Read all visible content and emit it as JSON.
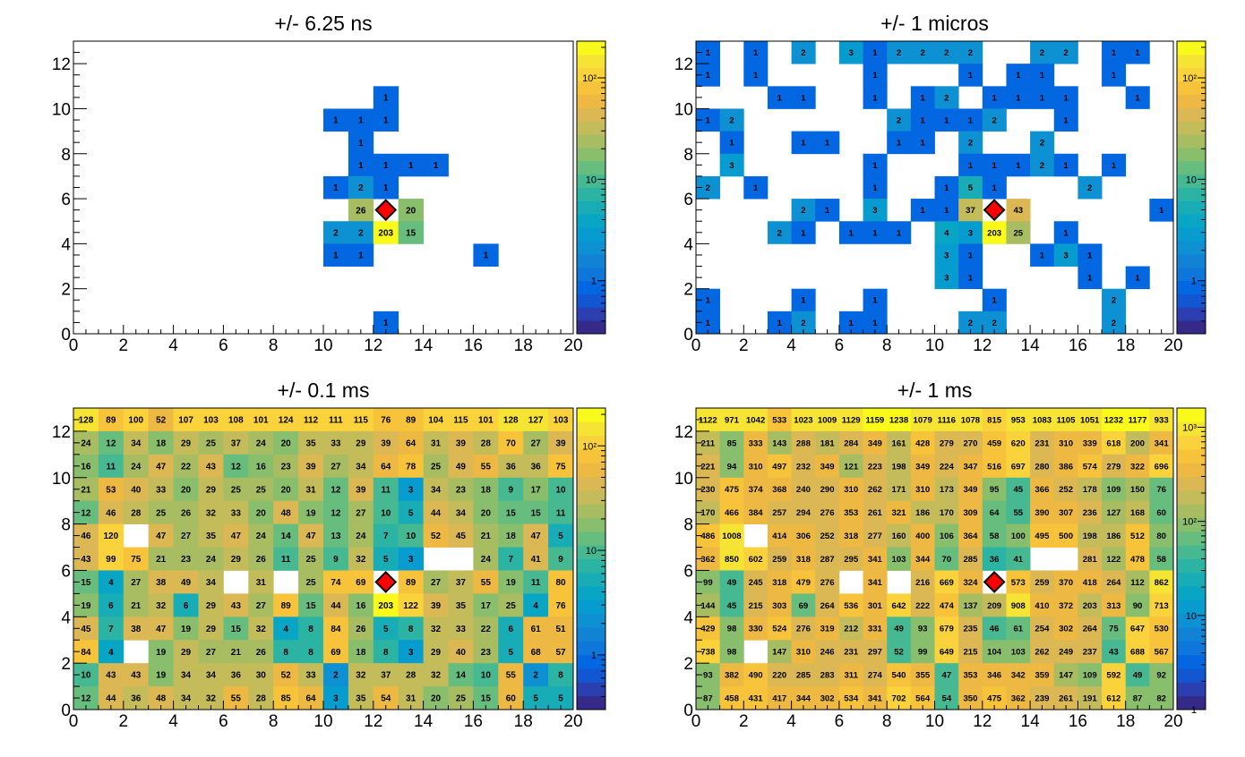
{
  "colors": {
    "palette": [
      "#352a87",
      "#2b3fb0",
      "#1356d2",
      "#0367e1",
      "#0f77dc",
      "#1283d4",
      "#0d91d2",
      "#079ccf",
      "#08a5c5",
      "#17acb6",
      "#2bb4a4",
      "#47b992",
      "#67bd7e",
      "#89be6c",
      "#a8bd61",
      "#c4bb5a",
      "#dbb853",
      "#edb943",
      "#f7c33a",
      "#f9d23c",
      "#f5e433",
      "#f9f91b"
    ],
    "marker_fill": "#ff0000",
    "marker_stroke": "#000000"
  },
  "marker": {
    "x": 12.5,
    "y": 5.5,
    "shape": "diamond"
  },
  "chart_data": [
    {
      "type": "heatmap",
      "title": "+/- 6.25 ns",
      "xlim": [
        0,
        20
      ],
      "ylim": [
        0,
        13
      ],
      "xticks": [
        0,
        2,
        4,
        6,
        8,
        10,
        12,
        14,
        16,
        18,
        20
      ],
      "yticks": [
        0,
        2,
        4,
        6,
        8,
        10,
        12
      ],
      "zscale": "log",
      "zlim": [
        0.3,
        230
      ],
      "colorbar_ticks": [
        {
          "value": 1,
          "label": "1"
        },
        {
          "value": 10,
          "label": "10"
        },
        {
          "value": 100,
          "label": "10²"
        }
      ],
      "cells": [
        [
          12,
          10,
          1
        ],
        [
          10,
          9,
          1
        ],
        [
          11,
          9,
          1
        ],
        [
          12,
          9,
          1
        ],
        [
          11,
          8,
          1
        ],
        [
          11,
          7,
          1
        ],
        [
          12,
          7,
          1
        ],
        [
          13,
          7,
          1
        ],
        [
          14,
          7,
          1
        ],
        [
          10,
          6,
          1
        ],
        [
          11,
          6,
          2
        ],
        [
          12,
          6,
          1
        ],
        [
          11,
          5,
          26
        ],
        [
          13,
          5,
          20
        ],
        [
          10,
          4,
          2
        ],
        [
          11,
          4,
          2
        ],
        [
          12,
          4,
          203
        ],
        [
          13,
          4,
          15
        ],
        [
          10,
          3,
          1
        ],
        [
          11,
          3,
          1
        ],
        [
          16,
          3,
          1
        ],
        [
          12,
          0,
          1
        ]
      ]
    },
    {
      "type": "heatmap",
      "title": "+/- 1 micros",
      "xlim": [
        0,
        20
      ],
      "ylim": [
        0,
        13
      ],
      "xticks": [
        0,
        2,
        4,
        6,
        8,
        10,
        12,
        14,
        16,
        18,
        20
      ],
      "yticks": [
        0,
        2,
        4,
        6,
        8,
        10,
        12
      ],
      "zscale": "log",
      "zlim": [
        0.3,
        230
      ],
      "colorbar_ticks": [
        {
          "value": 1,
          "label": "1"
        },
        {
          "value": 10,
          "label": "10"
        },
        {
          "value": 100,
          "label": "10²"
        }
      ],
      "cells": [
        [
          0,
          12,
          1
        ],
        [
          2,
          12,
          1
        ],
        [
          4,
          12,
          2
        ],
        [
          6,
          12,
          3
        ],
        [
          7,
          12,
          1
        ],
        [
          8,
          12,
          2
        ],
        [
          9,
          12,
          2
        ],
        [
          10,
          12,
          2
        ],
        [
          11,
          12,
          2
        ],
        [
          14,
          12,
          2
        ],
        [
          15,
          12,
          2
        ],
        [
          17,
          12,
          1
        ],
        [
          18,
          12,
          1
        ],
        [
          0,
          11,
          1
        ],
        [
          2,
          11,
          1
        ],
        [
          7,
          11,
          1
        ],
        [
          11,
          11,
          1
        ],
        [
          13,
          11,
          1
        ],
        [
          14,
          11,
          1
        ],
        [
          17,
          11,
          1
        ],
        [
          3,
          10,
          1
        ],
        [
          4,
          10,
          1
        ],
        [
          7,
          10,
          1
        ],
        [
          9,
          10,
          1
        ],
        [
          10,
          10,
          2
        ],
        [
          12,
          10,
          1
        ],
        [
          13,
          10,
          1
        ],
        [
          14,
          10,
          1
        ],
        [
          15,
          10,
          1
        ],
        [
          18,
          10,
          1
        ],
        [
          0,
          9,
          1
        ],
        [
          1,
          9,
          2
        ],
        [
          8,
          9,
          2
        ],
        [
          9,
          9,
          1
        ],
        [
          10,
          9,
          1
        ],
        [
          11,
          9,
          1
        ],
        [
          12,
          9,
          2
        ],
        [
          15,
          9,
          1
        ],
        [
          1,
          8,
          1
        ],
        [
          4,
          8,
          1
        ],
        [
          5,
          8,
          1
        ],
        [
          8,
          8,
          1
        ],
        [
          9,
          8,
          1
        ],
        [
          11,
          8,
          2
        ],
        [
          14,
          8,
          2
        ],
        [
          1,
          7,
          3
        ],
        [
          7,
          7,
          1
        ],
        [
          11,
          7,
          1
        ],
        [
          12,
          7,
          1
        ],
        [
          13,
          7,
          1
        ],
        [
          14,
          7,
          2
        ],
        [
          15,
          7,
          1
        ],
        [
          17,
          7,
          1
        ],
        [
          0,
          6,
          2
        ],
        [
          2,
          6,
          1
        ],
        [
          7,
          6,
          1
        ],
        [
          10,
          6,
          1
        ],
        [
          11,
          6,
          5
        ],
        [
          12,
          6,
          1
        ],
        [
          16,
          6,
          2
        ],
        [
          4,
          5,
          2
        ],
        [
          5,
          5,
          1
        ],
        [
          7,
          5,
          3
        ],
        [
          9,
          5,
          1
        ],
        [
          10,
          5,
          1
        ],
        [
          11,
          5,
          37
        ],
        [
          13,
          5,
          43
        ],
        [
          19,
          5,
          1
        ],
        [
          3,
          4,
          2
        ],
        [
          4,
          4,
          1
        ],
        [
          6,
          4,
          1
        ],
        [
          7,
          4,
          1
        ],
        [
          8,
          4,
          1
        ],
        [
          10,
          4,
          4
        ],
        [
          11,
          4,
          3
        ],
        [
          12,
          4,
          203
        ],
        [
          13,
          4,
          25
        ],
        [
          15,
          4,
          1
        ],
        [
          10,
          3,
          3
        ],
        [
          11,
          3,
          1
        ],
        [
          14,
          3,
          1
        ],
        [
          15,
          3,
          3
        ],
        [
          16,
          3,
          1
        ],
        [
          10,
          2,
          3
        ],
        [
          11,
          2,
          1
        ],
        [
          16,
          2,
          1
        ],
        [
          18,
          2,
          1
        ],
        [
          0,
          1,
          1
        ],
        [
          4,
          1,
          1
        ],
        [
          7,
          1,
          1
        ],
        [
          12,
          1,
          1
        ],
        [
          17,
          1,
          2
        ],
        [
          0,
          0,
          1
        ],
        [
          3,
          0,
          1
        ],
        [
          4,
          0,
          2
        ],
        [
          6,
          0,
          1
        ],
        [
          7,
          0,
          1
        ],
        [
          11,
          0,
          2
        ],
        [
          12,
          0,
          2
        ],
        [
          17,
          0,
          2
        ]
      ]
    },
    {
      "type": "heatmap",
      "title": "+/- 0.1 ms",
      "xlim": [
        0,
        20
      ],
      "ylim": [
        0,
        13
      ],
      "xticks": [
        0,
        2,
        4,
        6,
        8,
        10,
        12,
        14,
        16,
        18,
        20
      ],
      "yticks": [
        0,
        2,
        4,
        6,
        8,
        10,
        12
      ],
      "zscale": "log",
      "zlim": [
        0.3,
        230
      ],
      "colorbar_ticks": [
        {
          "value": 1,
          "label": "1"
        },
        {
          "value": 10,
          "label": "10"
        },
        {
          "value": 100,
          "label": "10²"
        }
      ],
      "grid": [
        [
          128,
          89,
          100,
          52,
          107,
          103,
          108,
          101,
          124,
          112,
          111,
          115,
          76,
          89,
          104,
          115,
          101,
          128,
          127,
          103
        ],
        [
          24,
          12,
          34,
          18,
          29,
          25,
          37,
          24,
          20,
          35,
          33,
          29,
          39,
          64,
          31,
          39,
          28,
          70,
          27,
          39
        ],
        [
          16,
          11,
          24,
          47,
          22,
          43,
          12,
          16,
          23,
          39,
          27,
          34,
          64,
          78,
          25,
          49,
          55,
          36,
          36,
          75
        ],
        [
          21,
          53,
          40,
          33,
          20,
          29,
          25,
          25,
          20,
          31,
          12,
          39,
          11,
          3,
          34,
          23,
          18,
          9,
          17,
          10
        ],
        [
          12,
          46,
          28,
          25,
          26,
          32,
          33,
          20,
          48,
          19,
          12,
          27,
          10,
          5,
          44,
          34,
          20,
          15,
          15,
          11
        ],
        [
          46,
          120,
          null,
          47,
          27,
          35,
          47,
          24,
          14,
          47,
          13,
          24,
          7,
          10,
          52,
          45,
          21,
          18,
          47,
          5
        ],
        [
          43,
          99,
          75,
          21,
          23,
          24,
          29,
          26,
          11,
          25,
          9,
          32,
          5,
          3,
          null,
          null,
          24,
          7,
          41,
          9
        ],
        [
          15,
          4,
          27,
          38,
          49,
          34,
          null,
          31,
          null,
          25,
          74,
          69,
          null,
          89,
          27,
          37,
          55,
          19,
          11,
          80
        ],
        [
          19,
          6,
          21,
          32,
          6,
          29,
          43,
          27,
          89,
          15,
          44,
          16,
          203,
          122,
          39,
          35,
          17,
          25,
          4,
          76
        ],
        [
          45,
          7,
          38,
          47,
          19,
          29,
          15,
          32,
          4,
          8,
          84,
          26,
          5,
          8,
          32,
          33,
          22,
          6,
          61,
          51
        ],
        [
          84,
          4,
          null,
          19,
          29,
          27,
          21,
          26,
          8,
          8,
          69,
          18,
          8,
          3,
          29,
          40,
          23,
          5,
          68,
          57
        ],
        [
          10,
          43,
          43,
          19,
          34,
          34,
          36,
          30,
          52,
          33,
          2,
          32,
          37,
          28,
          32,
          14,
          10,
          55,
          2,
          8
        ],
        [
          12,
          44,
          36,
          48,
          34,
          32,
          55,
          28,
          85,
          64,
          3,
          35,
          54,
          31,
          20,
          25,
          15,
          60,
          5,
          5
        ]
      ]
    },
    {
      "type": "heatmap",
      "title": "+/- 1 ms",
      "xlim": [
        0,
        20
      ],
      "ylim": [
        0,
        13
      ],
      "xticks": [
        0,
        2,
        4,
        6,
        8,
        10,
        12,
        14,
        16,
        18,
        20
      ],
      "yticks": [
        0,
        2,
        4,
        6,
        8,
        10,
        12
      ],
      "zscale": "log",
      "zlim": [
        1,
        1600
      ],
      "colorbar_ticks": [
        {
          "value": 1,
          "label": "1"
        },
        {
          "value": 10,
          "label": "10"
        },
        {
          "value": 100,
          "label": "10²"
        },
        {
          "value": 1000,
          "label": "10³"
        }
      ],
      "grid": [
        [
          1122,
          971,
          1042,
          533,
          1023,
          1009,
          1129,
          1159,
          1238,
          1079,
          1116,
          1078,
          815,
          953,
          1083,
          1105,
          1051,
          1232,
          1177,
          933
        ],
        [
          211,
          85,
          333,
          143,
          288,
          181,
          284,
          349,
          161,
          428,
          279,
          270,
          459,
          620,
          231,
          310,
          339,
          618,
          200,
          341
        ],
        [
          221,
          94,
          310,
          497,
          232,
          349,
          121,
          223,
          198,
          349,
          224,
          347,
          516,
          697,
          280,
          386,
          574,
          279,
          322,
          696
        ],
        [
          230,
          475,
          374,
          368,
          240,
          290,
          310,
          262,
          171,
          310,
          173,
          349,
          95,
          45,
          366,
          252,
          178,
          109,
          150,
          76
        ],
        [
          170,
          466,
          384,
          257,
          294,
          276,
          353,
          261,
          321,
          186,
          170,
          309,
          64,
          55,
          390,
          307,
          236,
          127,
          168,
          60
        ],
        [
          486,
          1008,
          null,
          414,
          306,
          252,
          318,
          277,
          160,
          400,
          106,
          364,
          58,
          100,
          495,
          500,
          198,
          186,
          512,
          80
        ],
        [
          362,
          850,
          602,
          259,
          318,
          287,
          295,
          341,
          103,
          344,
          70,
          285,
          36,
          41,
          null,
          null,
          281,
          122,
          478,
          58
        ],
        [
          99,
          49,
          245,
          318,
          479,
          276,
          null,
          341,
          null,
          216,
          669,
          324,
          null,
          573,
          259,
          370,
          418,
          264,
          112,
          862
        ],
        [
          144,
          45,
          215,
          303,
          69,
          264,
          536,
          301,
          642,
          222,
          474,
          137,
          209,
          908,
          410,
          372,
          203,
          313,
          90,
          713
        ],
        [
          429,
          98,
          330,
          524,
          276,
          319,
          212,
          331,
          49,
          93,
          679,
          235,
          46,
          61,
          254,
          302,
          264,
          75,
          647,
          530
        ],
        [
          738,
          98,
          null,
          147,
          310,
          246,
          231,
          297,
          52,
          99,
          649,
          215,
          104,
          103,
          262,
          249,
          237,
          43,
          688,
          567
        ],
        [
          93,
          382,
          490,
          220,
          285,
          283,
          311,
          274,
          540,
          355,
          47,
          353,
          346,
          342,
          359,
          147,
          109,
          592,
          49,
          92
        ],
        [
          87,
          458,
          431,
          417,
          344,
          302,
          534,
          341,
          702,
          564,
          54,
          350,
          475,
          362,
          239,
          261,
          191,
          612,
          87,
          82
        ]
      ]
    }
  ]
}
